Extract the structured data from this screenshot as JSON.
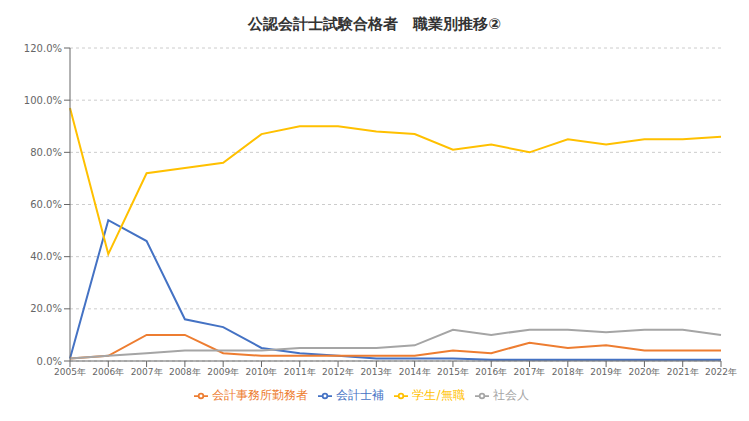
{
  "chart_data": {
    "type": "line",
    "title": "公認会計士試験合格者　職業別推移②",
    "categories": [
      "2005年",
      "2006年",
      "2007年",
      "2008年",
      "2009年",
      "2010年",
      "2011年",
      "2012年",
      "2013年",
      "2014年",
      "2015年",
      "2016年",
      "2017年",
      "2018年",
      "2019年",
      "2020年",
      "2021年",
      "2022年"
    ],
    "series": [
      {
        "name": "会計士補",
        "color": "#4472C4",
        "values": [
          0.01,
          0.54,
          0.46,
          0.16,
          0.13,
          0.05,
          0.03,
          0.02,
          0.01,
          0.01,
          0.01,
          0.005,
          0.005,
          0.005,
          0.005,
          0.005,
          0.005,
          0.005
        ]
      },
      {
        "name": "会計事務所勤務者",
        "color": "#ED7D31",
        "values": [
          0.01,
          0.02,
          0.1,
          0.1,
          0.03,
          0.02,
          0.02,
          0.02,
          0.02,
          0.02,
          0.04,
          0.03,
          0.07,
          0.05,
          0.06,
          0.04,
          0.04,
          0.04
        ]
      },
      {
        "name": "社会人",
        "color": "#A5A5A5",
        "values": [
          0.01,
          0.02,
          0.03,
          0.04,
          0.04,
          0.04,
          0.05,
          0.05,
          0.05,
          0.06,
          0.12,
          0.1,
          0.12,
          0.12,
          0.11,
          0.12,
          0.12,
          0.1
        ]
      },
      {
        "name": "学生/無職",
        "color": "#FFC000",
        "values": [
          0.97,
          0.41,
          0.72,
          0.74,
          0.76,
          0.87,
          0.9,
          0.9,
          0.88,
          0.87,
          0.81,
          0.83,
          0.8,
          0.85,
          0.83,
          0.85,
          0.85,
          0.86
        ]
      }
    ],
    "ylim": [
      0.0,
      1.2
    ],
    "yticks": [
      {
        "value": 0.0,
        "label": "0.0%"
      },
      {
        "value": 0.2,
        "label": "20.0%"
      },
      {
        "value": 0.4,
        "label": "40.0%"
      },
      {
        "value": 0.6,
        "label": "60.0%"
      },
      {
        "value": 0.8,
        "label": "80.0%"
      },
      {
        "value": 1.0,
        "label": "100.0%"
      },
      {
        "value": 1.2,
        "label": "120.0%"
      }
    ],
    "grid": true,
    "legend": "bottom"
  }
}
